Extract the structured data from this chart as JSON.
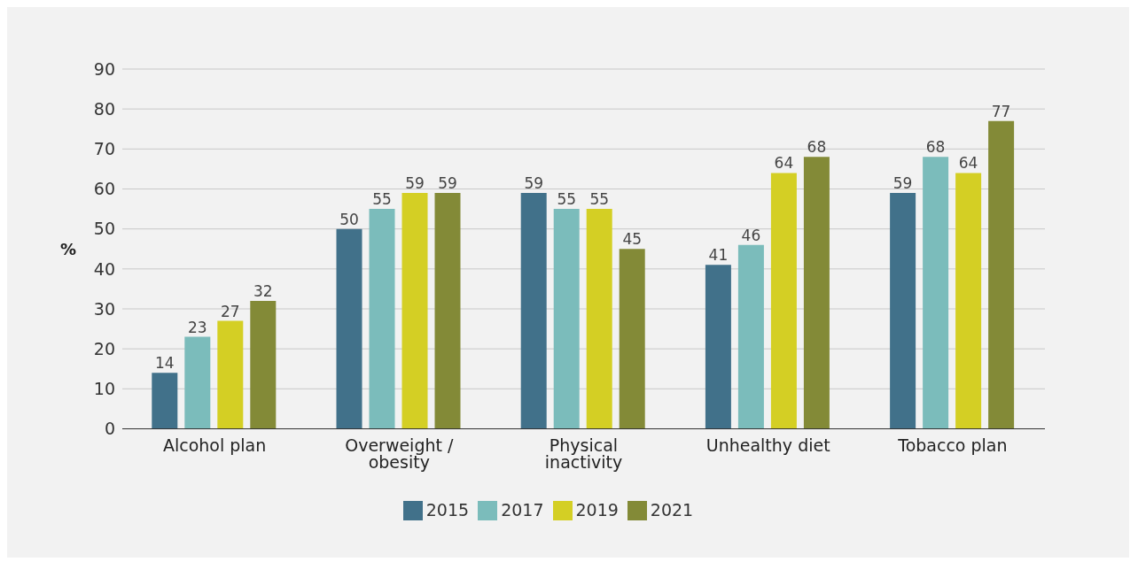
{
  "chart_data": {
    "type": "bar",
    "categories": [
      "Alcohol plan",
      "Overweight / obesity",
      "Physical inactivity",
      "Unhealthy diet",
      "Tobacco plan"
    ],
    "ylabel": "%",
    "ylim": [
      0,
      90
    ],
    "yticks": [
      0,
      10,
      20,
      30,
      40,
      50,
      60,
      70,
      80,
      90
    ],
    "grid": "y",
    "legend": "bottom",
    "data_labels": true,
    "series": [
      {
        "name": "2015",
        "color": "#41718a",
        "values": [
          14,
          50,
          59,
          41,
          59
        ]
      },
      {
        "name": "2017",
        "color": "#7bbcbb",
        "values": [
          23,
          55,
          55,
          46,
          68
        ]
      },
      {
        "name": "2019",
        "color": "#d4cf24",
        "values": [
          27,
          59,
          55,
          64,
          64
        ]
      },
      {
        "name": "2021",
        "color": "#838a37",
        "values": [
          32,
          59,
          45,
          68,
          77
        ]
      }
    ]
  }
}
